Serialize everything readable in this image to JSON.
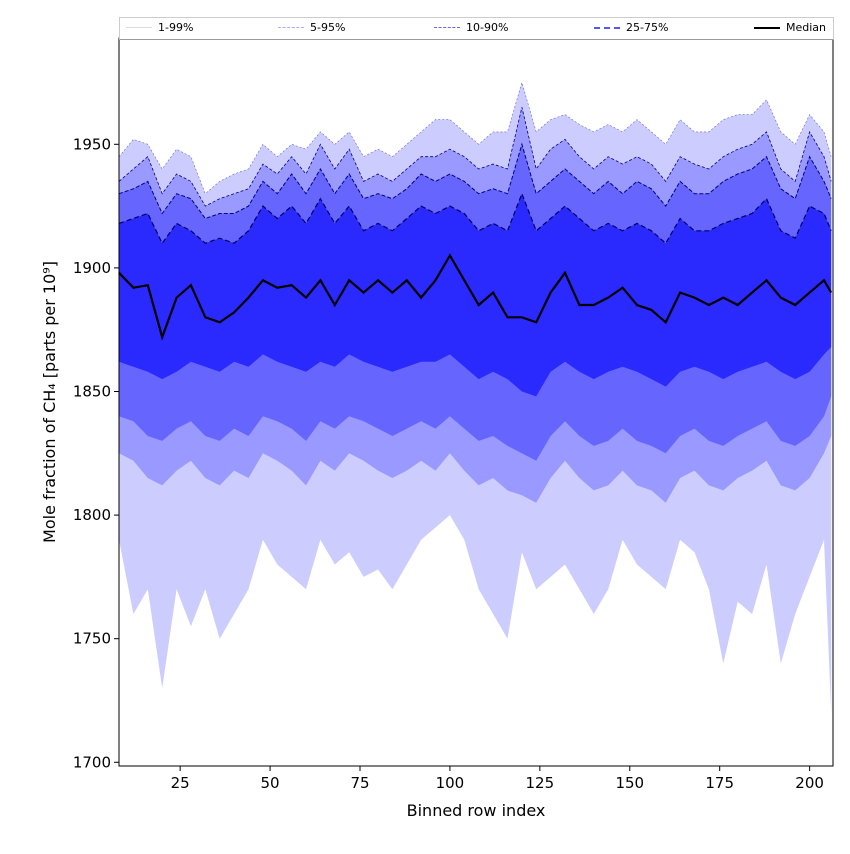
{
  "chart_data": {
    "type": "area",
    "title": "",
    "xlabel": "Binned row index",
    "ylabel": "Mole fraction of CH₄ [parts per 10⁹]",
    "xlim": [
      8,
      206.5
    ],
    "ylim": [
      1698.5,
      1993
    ],
    "xticks": [
      25,
      50,
      75,
      100,
      125,
      150,
      175,
      200
    ],
    "yticks": [
      1700,
      1750,
      1800,
      1850,
      1900,
      1950
    ],
    "grid": false,
    "legend_position": "top",
    "legend": [
      {
        "label": "1-99%",
        "color": "#ccccff"
      },
      {
        "label": "5-95%",
        "color": "#9999ff"
      },
      {
        "label": "10-90%",
        "color": "#6666ff"
      },
      {
        "label": "25-75%",
        "color": "#3333ff"
      },
      {
        "label": "Median",
        "color": "#000000"
      }
    ],
    "x": [
      8,
      12,
      16,
      20,
      24,
      28,
      32,
      36,
      40,
      44,
      48,
      52,
      56,
      60,
      64,
      68,
      72,
      76,
      80,
      84,
      88,
      92,
      96,
      100,
      104,
      108,
      112,
      116,
      120,
      124,
      128,
      132,
      136,
      140,
      144,
      148,
      152,
      156,
      160,
      164,
      168,
      172,
      176,
      180,
      184,
      188,
      192,
      196,
      200,
      204,
      206
    ],
    "series": {
      "p1": [
        1790,
        1760,
        1770,
        1730,
        1770,
        1755,
        1770,
        1750,
        1760,
        1770,
        1790,
        1780,
        1775,
        1770,
        1790,
        1780,
        1785,
        1775,
        1778,
        1770,
        1780,
        1790,
        1795,
        1800,
        1790,
        1770,
        1760,
        1750,
        1785,
        1770,
        1775,
        1780,
        1770,
        1760,
        1770,
        1790,
        1780,
        1775,
        1770,
        1790,
        1785,
        1770,
        1740,
        1765,
        1760,
        1780,
        1740,
        1760,
        1775,
        1790,
        1720
      ],
      "p5": [
        1825,
        1822,
        1815,
        1812,
        1818,
        1822,
        1815,
        1812,
        1818,
        1815,
        1825,
        1822,
        1818,
        1812,
        1822,
        1818,
        1825,
        1822,
        1818,
        1815,
        1818,
        1822,
        1818,
        1825,
        1818,
        1812,
        1815,
        1810,
        1808,
        1805,
        1815,
        1822,
        1815,
        1810,
        1812,
        1818,
        1812,
        1810,
        1805,
        1815,
        1818,
        1812,
        1810,
        1815,
        1818,
        1822,
        1812,
        1810,
        1815,
        1825,
        1832
      ],
      "p10": [
        1840,
        1838,
        1832,
        1830,
        1835,
        1838,
        1832,
        1830,
        1835,
        1832,
        1840,
        1838,
        1835,
        1830,
        1838,
        1835,
        1840,
        1838,
        1835,
        1832,
        1835,
        1838,
        1835,
        1840,
        1835,
        1830,
        1832,
        1828,
        1825,
        1822,
        1832,
        1838,
        1832,
        1828,
        1830,
        1835,
        1830,
        1828,
        1825,
        1832,
        1835,
        1830,
        1828,
        1832,
        1835,
        1838,
        1830,
        1828,
        1832,
        1840,
        1848
      ],
      "p25": [
        1862,
        1860,
        1858,
        1855,
        1858,
        1862,
        1860,
        1858,
        1862,
        1860,
        1865,
        1862,
        1860,
        1858,
        1862,
        1860,
        1865,
        1862,
        1860,
        1858,
        1860,
        1862,
        1862,
        1865,
        1860,
        1855,
        1858,
        1855,
        1850,
        1848,
        1858,
        1862,
        1858,
        1855,
        1858,
        1860,
        1858,
        1855,
        1852,
        1858,
        1860,
        1858,
        1855,
        1858,
        1860,
        1862,
        1858,
        1855,
        1858,
        1865,
        1868
      ],
      "median": [
        1898,
        1892,
        1893,
        1872,
        1888,
        1893,
        1880,
        1878,
        1882,
        1888,
        1895,
        1892,
        1893,
        1888,
        1895,
        1885,
        1895,
        1890,
        1895,
        1890,
        1895,
        1888,
        1895,
        1905,
        1895,
        1885,
        1890,
        1880,
        1880,
        1878,
        1890,
        1898,
        1885,
        1885,
        1888,
        1892,
        1885,
        1883,
        1878,
        1890,
        1888,
        1885,
        1888,
        1885,
        1890,
        1895,
        1888,
        1885,
        1890,
        1895,
        1890
      ],
      "p75": [
        1918,
        1920,
        1922,
        1910,
        1918,
        1915,
        1910,
        1912,
        1910,
        1915,
        1925,
        1920,
        1925,
        1918,
        1928,
        1918,
        1925,
        1915,
        1918,
        1915,
        1920,
        1925,
        1922,
        1925,
        1922,
        1915,
        1918,
        1915,
        1930,
        1915,
        1920,
        1925,
        1920,
        1915,
        1918,
        1915,
        1918,
        1915,
        1910,
        1920,
        1915,
        1915,
        1918,
        1920,
        1922,
        1928,
        1915,
        1912,
        1925,
        1922,
        1915
      ],
      "p90": [
        1930,
        1932,
        1935,
        1922,
        1930,
        1928,
        1920,
        1922,
        1922,
        1925,
        1935,
        1930,
        1938,
        1930,
        1940,
        1930,
        1938,
        1928,
        1930,
        1928,
        1932,
        1938,
        1935,
        1938,
        1935,
        1930,
        1932,
        1930,
        1950,
        1930,
        1935,
        1940,
        1935,
        1930,
        1935,
        1930,
        1935,
        1932,
        1925,
        1935,
        1930,
        1930,
        1935,
        1938,
        1940,
        1945,
        1932,
        1928,
        1945,
        1935,
        1928
      ],
      "p95": [
        1935,
        1940,
        1945,
        1930,
        1938,
        1935,
        1925,
        1928,
        1930,
        1932,
        1942,
        1938,
        1945,
        1938,
        1950,
        1940,
        1948,
        1935,
        1938,
        1935,
        1940,
        1945,
        1945,
        1948,
        1945,
        1940,
        1942,
        1940,
        1965,
        1940,
        1948,
        1952,
        1945,
        1940,
        1945,
        1942,
        1945,
        1942,
        1935,
        1945,
        1942,
        1940,
        1945,
        1948,
        1950,
        1955,
        1940,
        1935,
        1955,
        1945,
        1935
      ],
      "p99": [
        1945,
        1952,
        1950,
        1940,
        1948,
        1945,
        1930,
        1935,
        1938,
        1940,
        1950,
        1945,
        1950,
        1948,
        1955,
        1950,
        1955,
        1945,
        1948,
        1945,
        1950,
        1955,
        1960,
        1960,
        1955,
        1950,
        1955,
        1955,
        1975,
        1955,
        1960,
        1962,
        1958,
        1955,
        1958,
        1955,
        1960,
        1955,
        1950,
        1960,
        1955,
        1955,
        1960,
        1962,
        1962,
        1968,
        1955,
        1950,
        1962,
        1955,
        1945
      ]
    }
  }
}
